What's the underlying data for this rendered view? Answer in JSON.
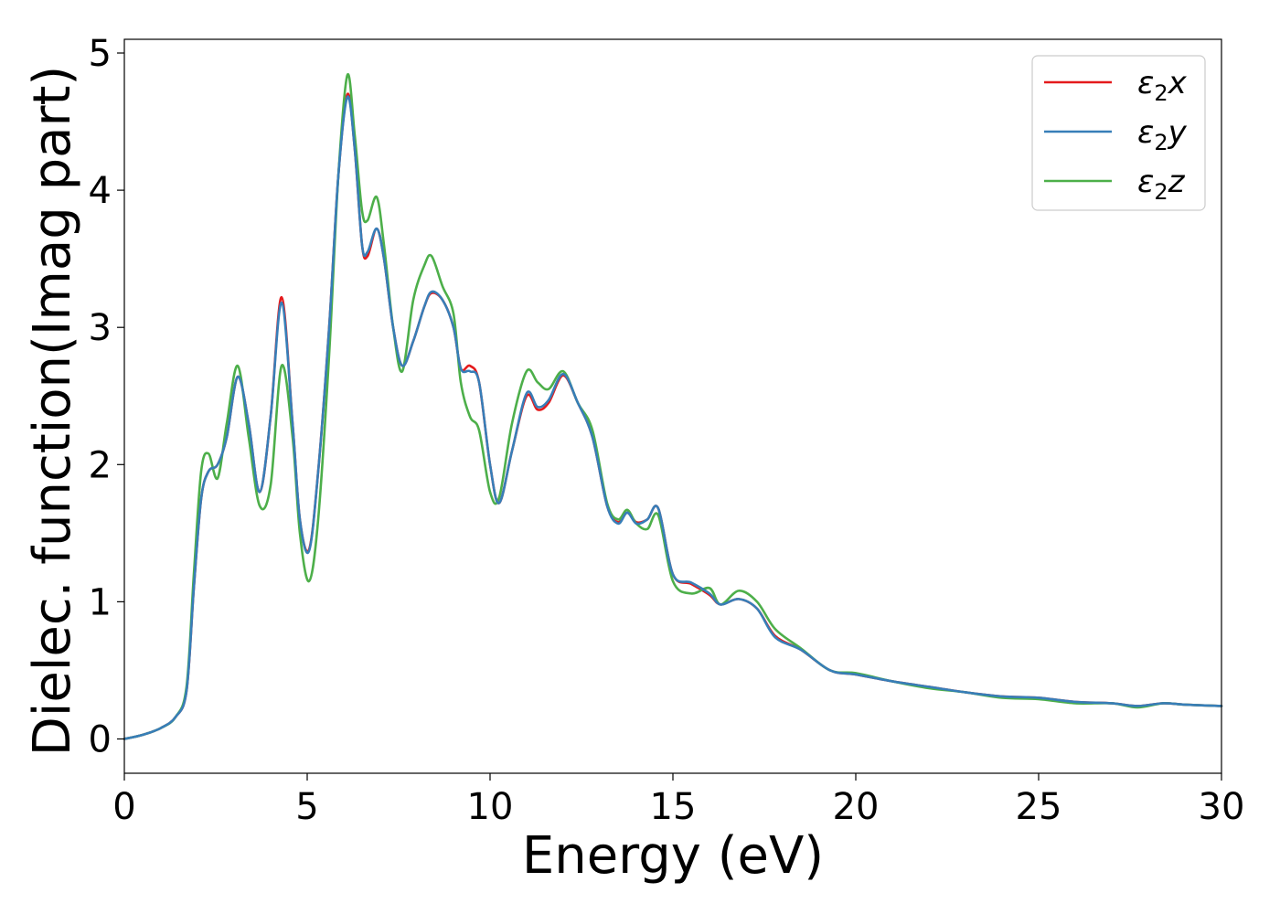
{
  "chart_data": {
    "type": "line",
    "xlabel": "Energy (eV)",
    "ylabel": "Dielec. function(Imag part)",
    "xlim": [
      0,
      30
    ],
    "ylim": [
      -0.25,
      5.1
    ],
    "xticks": [
      "0",
      "5",
      "10",
      "15",
      "20",
      "25",
      "30"
    ],
    "yticks": [
      "0",
      "1",
      "2",
      "3",
      "4",
      "5"
    ],
    "grid": false,
    "legend_position": "top-right",
    "series": [
      {
        "name": "ε₂x",
        "legend_symbol": "ε",
        "legend_sub": "2",
        "legend_suffix": "x",
        "color": "#e41a1c",
        "x": [
          0,
          0.5,
          1.0,
          1.4,
          1.7,
          1.9,
          2.1,
          2.3,
          2.55,
          2.8,
          3.1,
          3.4,
          3.7,
          4.0,
          4.3,
          4.6,
          4.8,
          5.05,
          5.3,
          5.6,
          5.85,
          6.1,
          6.3,
          6.5,
          6.65,
          6.9,
          7.1,
          7.35,
          7.6,
          7.9,
          8.2,
          8.4,
          8.7,
          9.0,
          9.2,
          9.45,
          9.7,
          10.0,
          10.25,
          10.6,
          11.0,
          11.3,
          11.6,
          12.0,
          12.4,
          12.8,
          13.2,
          13.5,
          13.75,
          14.0,
          14.3,
          14.6,
          15.0,
          15.5,
          16.0,
          16.3,
          16.8,
          17.3,
          17.8,
          18.5,
          19.3,
          20.0,
          21.0,
          22.0,
          23.0,
          24.0,
          25.0,
          26.0,
          27.0,
          27.7,
          28.4,
          29.0,
          30.0
        ],
        "values": [
          0.0,
          0.03,
          0.08,
          0.16,
          0.35,
          1.1,
          1.75,
          1.95,
          2.0,
          2.2,
          2.64,
          2.3,
          1.8,
          2.35,
          3.22,
          2.3,
          1.6,
          1.38,
          1.95,
          3.0,
          4.1,
          4.7,
          4.3,
          3.6,
          3.52,
          3.72,
          3.5,
          3.0,
          2.72,
          2.9,
          3.15,
          3.25,
          3.2,
          3.0,
          2.7,
          2.72,
          2.6,
          2.0,
          1.72,
          2.1,
          2.5,
          2.4,
          2.45,
          2.65,
          2.45,
          2.2,
          1.7,
          1.58,
          1.65,
          1.58,
          1.6,
          1.68,
          1.2,
          1.13,
          1.05,
          0.98,
          1.02,
          0.95,
          0.75,
          0.65,
          0.5,
          0.47,
          0.42,
          0.38,
          0.34,
          0.31,
          0.3,
          0.27,
          0.26,
          0.24,
          0.26,
          0.25,
          0.24
        ]
      },
      {
        "name": "ε₂y",
        "legend_symbol": "ε",
        "legend_sub": "2",
        "legend_suffix": "y",
        "color": "#377eb8",
        "x": [
          0,
          0.5,
          1.0,
          1.4,
          1.7,
          1.9,
          2.1,
          2.3,
          2.55,
          2.8,
          3.1,
          3.4,
          3.7,
          4.0,
          4.3,
          4.6,
          4.8,
          5.05,
          5.3,
          5.6,
          5.85,
          6.1,
          6.3,
          6.5,
          6.65,
          6.9,
          7.1,
          7.35,
          7.6,
          7.9,
          8.2,
          8.4,
          8.7,
          9.0,
          9.2,
          9.45,
          9.7,
          10.0,
          10.25,
          10.6,
          11.0,
          11.3,
          11.6,
          12.0,
          12.4,
          12.8,
          13.2,
          13.5,
          13.75,
          14.0,
          14.3,
          14.6,
          15.0,
          15.5,
          16.0,
          16.3,
          16.8,
          17.3,
          17.8,
          18.5,
          19.3,
          20.0,
          21.0,
          22.0,
          23.0,
          24.0,
          25.0,
          26.0,
          27.0,
          27.7,
          28.4,
          29.0,
          30.0
        ],
        "values": [
          0.0,
          0.03,
          0.08,
          0.16,
          0.35,
          1.1,
          1.75,
          1.95,
          2.0,
          2.2,
          2.64,
          2.3,
          1.8,
          2.35,
          3.18,
          2.3,
          1.6,
          1.37,
          1.95,
          3.0,
          4.1,
          4.68,
          4.3,
          3.6,
          3.55,
          3.72,
          3.5,
          3.0,
          2.72,
          2.9,
          3.15,
          3.26,
          3.2,
          3.0,
          2.7,
          2.68,
          2.6,
          2.0,
          1.72,
          2.1,
          2.52,
          2.42,
          2.47,
          2.66,
          2.45,
          2.2,
          1.7,
          1.57,
          1.65,
          1.57,
          1.6,
          1.68,
          1.2,
          1.14,
          1.06,
          0.98,
          1.02,
          0.95,
          0.74,
          0.65,
          0.5,
          0.47,
          0.42,
          0.38,
          0.34,
          0.31,
          0.3,
          0.27,
          0.26,
          0.24,
          0.26,
          0.25,
          0.24
        ]
      },
      {
        "name": "ε₂z",
        "legend_symbol": "ε",
        "legend_sub": "2",
        "legend_suffix": "z",
        "color": "#4daf4a",
        "x": [
          0,
          0.5,
          1.0,
          1.4,
          1.7,
          1.9,
          2.1,
          2.3,
          2.55,
          2.8,
          3.1,
          3.4,
          3.7,
          4.0,
          4.3,
          4.6,
          4.8,
          5.05,
          5.3,
          5.6,
          5.85,
          6.1,
          6.3,
          6.5,
          6.65,
          6.9,
          7.1,
          7.35,
          7.6,
          7.9,
          8.2,
          8.4,
          8.7,
          9.0,
          9.2,
          9.45,
          9.7,
          10.0,
          10.25,
          10.6,
          11.0,
          11.3,
          11.6,
          12.0,
          12.4,
          12.8,
          13.2,
          13.5,
          13.75,
          14.0,
          14.3,
          14.6,
          15.0,
          15.5,
          16.0,
          16.3,
          16.8,
          17.3,
          17.8,
          18.5,
          19.3,
          20.0,
          21.0,
          22.0,
          23.0,
          24.0,
          25.0,
          26.0,
          27.0,
          27.7,
          28.4,
          29.0,
          30.0
        ],
        "values": [
          0.0,
          0.03,
          0.08,
          0.16,
          0.38,
          1.2,
          1.95,
          2.08,
          1.9,
          2.3,
          2.72,
          2.2,
          1.7,
          1.85,
          2.72,
          2.2,
          1.5,
          1.15,
          1.6,
          2.8,
          4.1,
          4.84,
          4.4,
          3.85,
          3.78,
          3.95,
          3.6,
          3.0,
          2.68,
          3.2,
          3.45,
          3.52,
          3.3,
          3.1,
          2.6,
          2.35,
          2.25,
          1.8,
          1.76,
          2.3,
          2.68,
          2.6,
          2.55,
          2.68,
          2.45,
          2.25,
          1.72,
          1.6,
          1.67,
          1.57,
          1.53,
          1.63,
          1.15,
          1.06,
          1.1,
          0.98,
          1.08,
          1.0,
          0.8,
          0.66,
          0.5,
          0.48,
          0.42,
          0.37,
          0.34,
          0.3,
          0.29,
          0.26,
          0.26,
          0.23,
          0.26,
          0.25,
          0.24
        ]
      }
    ]
  }
}
